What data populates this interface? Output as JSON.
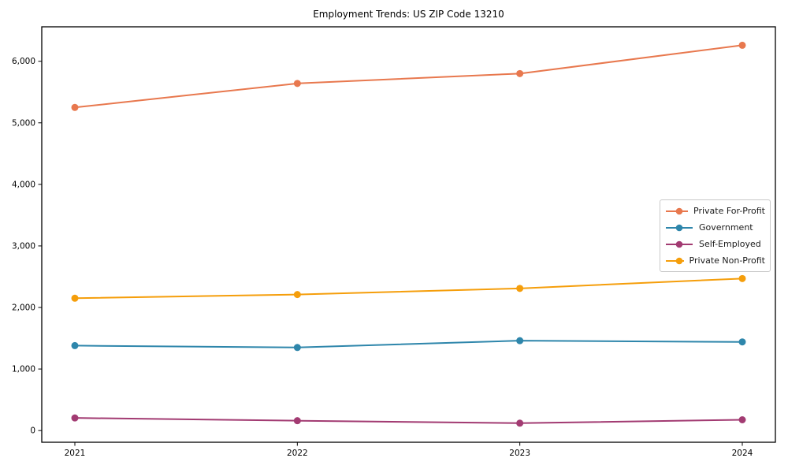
{
  "chart_data": {
    "type": "line",
    "title": "Employment Trends: US ZIP Code 13210",
    "categories": [
      "2021",
      "2022",
      "2023",
      "2024"
    ],
    "series": [
      {
        "name": "Private For-Profit",
        "color": "#e8784e",
        "values": [
          5250,
          5640,
          5800,
          6260
        ]
      },
      {
        "name": "Government",
        "color": "#2e86ab",
        "values": [
          1380,
          1350,
          1460,
          1440
        ]
      },
      {
        "name": "Self-Employed",
        "color": "#a23b72",
        "values": [
          205,
          160,
          120,
          175
        ]
      },
      {
        "name": "Private Non-Profit",
        "color": "#f59e0b",
        "values": [
          2150,
          2210,
          2310,
          2470
        ]
      }
    ],
    "xlabel": "",
    "ylabel": "",
    "ylim": [
      -190,
      6560
    ],
    "y_ticks": [
      0,
      1000,
      2000,
      3000,
      4000,
      5000,
      6000
    ],
    "grid": false,
    "legend_position": "right-middle",
    "axis_color": "#000000"
  }
}
